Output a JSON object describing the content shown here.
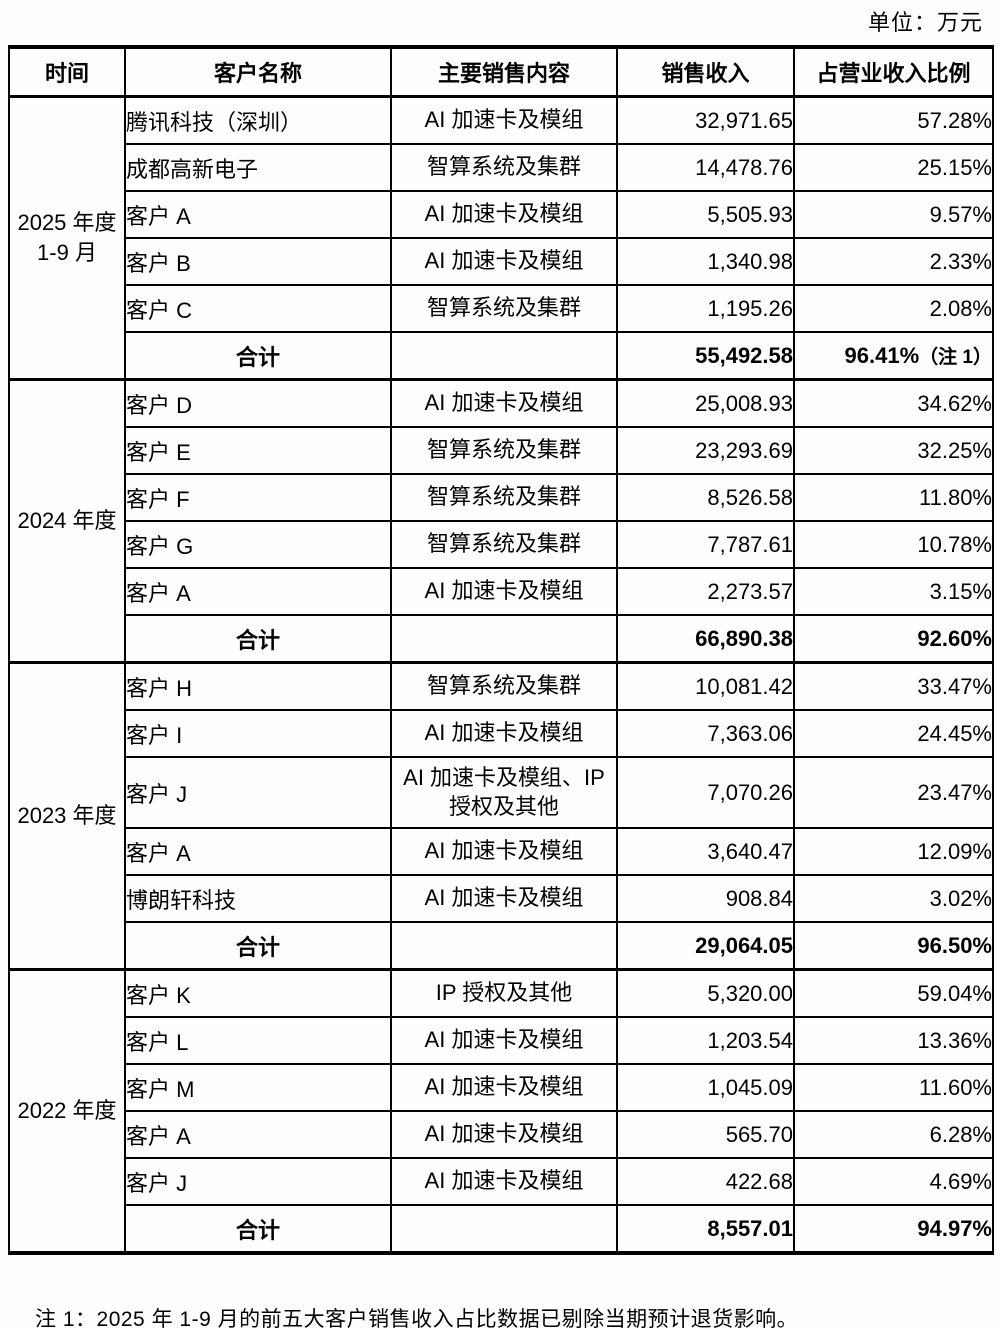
{
  "unit_label": "单位：万元",
  "table": {
    "headers": [
      "时间",
      "客户名称",
      "主要销售内容",
      "销售收入",
      "占营业收入比例"
    ],
    "groups": [
      {
        "period_lines": [
          "2025 年度",
          "1-9 月"
        ],
        "rows": [
          {
            "customer": "腾讯科技（深圳）",
            "content": "AI 加速卡及模组",
            "revenue": "32,971.65",
            "ratio": "57.28%"
          },
          {
            "customer": "成都高新电子",
            "content": "智算系统及集群",
            "revenue": "14,478.76",
            "ratio": "25.15%"
          },
          {
            "customer": "客户 A",
            "content": "AI 加速卡及模组",
            "revenue": "5,505.93",
            "ratio": "9.57%"
          },
          {
            "customer": "客户 B",
            "content": "AI 加速卡及模组",
            "revenue": "1,340.98",
            "ratio": "2.33%"
          },
          {
            "customer": "客户 C",
            "content": "智算系统及集群",
            "revenue": "1,195.26",
            "ratio": "2.08%"
          }
        ],
        "total": {
          "label": "合计",
          "revenue": "55,492.58",
          "ratio": "96.41%",
          "ratio_note": "（注 1）"
        }
      },
      {
        "period_lines": [
          "2024 年度"
        ],
        "rows": [
          {
            "customer": "客户 D",
            "content": "AI 加速卡及模组",
            "revenue": "25,008.93",
            "ratio": "34.62%"
          },
          {
            "customer": "客户 E",
            "content": "智算系统及集群",
            "revenue": "23,293.69",
            "ratio": "32.25%"
          },
          {
            "customer": "客户 F",
            "content": "智算系统及集群",
            "revenue": "8,526.58",
            "ratio": "11.80%"
          },
          {
            "customer": "客户 G",
            "content": "智算系统及集群",
            "revenue": "7,787.61",
            "ratio": "10.78%"
          },
          {
            "customer": "客户 A",
            "content": "AI 加速卡及模组",
            "revenue": "2,273.57",
            "ratio": "3.15%"
          }
        ],
        "total": {
          "label": "合计",
          "revenue": "66,890.38",
          "ratio": "92.60%"
        }
      },
      {
        "period_lines": [
          "2023 年度"
        ],
        "rows": [
          {
            "customer": "客户 H",
            "content": "智算系统及集群",
            "revenue": "10,081.42",
            "ratio": "33.47%"
          },
          {
            "customer": "客户 I",
            "content": "AI 加速卡及模组",
            "revenue": "7,363.06",
            "ratio": "24.45%"
          },
          {
            "customer": "客户 J",
            "content": "AI 加速卡及模组、IP 授权及其他",
            "revenue": "7,070.26",
            "ratio": "23.47%",
            "tall": true
          },
          {
            "customer": "客户 A",
            "content": "AI 加速卡及模组",
            "revenue": "3,640.47",
            "ratio": "12.09%"
          },
          {
            "customer": "博朗轩科技",
            "content": "AI 加速卡及模组",
            "revenue": "908.84",
            "ratio": "3.02%"
          }
        ],
        "total": {
          "label": "合计",
          "revenue": "29,064.05",
          "ratio": "96.50%"
        }
      },
      {
        "period_lines": [
          "2022 年度"
        ],
        "rows": [
          {
            "customer": "客户 K",
            "content": "IP 授权及其他",
            "revenue": "5,320.00",
            "ratio": "59.04%"
          },
          {
            "customer": "客户 L",
            "content": "AI 加速卡及模组",
            "revenue": "1,203.54",
            "ratio": "13.36%"
          },
          {
            "customer": "客户 M",
            "content": "AI 加速卡及模组",
            "revenue": "1,045.09",
            "ratio": "11.60%"
          },
          {
            "customer": "客户 A",
            "content": "AI 加速卡及模组",
            "revenue": "565.70",
            "ratio": "6.28%"
          },
          {
            "customer": "客户 J",
            "content": "AI 加速卡及模组",
            "revenue": "422.68",
            "ratio": "4.69%"
          }
        ],
        "total": {
          "label": "合计",
          "revenue": "8,557.01",
          "ratio": "94.97%"
        }
      }
    ]
  },
  "footnote": "注 1：2025 年 1-9 月的前五大客户销售收入占比数据已剔除当期预计退货影响。"
}
